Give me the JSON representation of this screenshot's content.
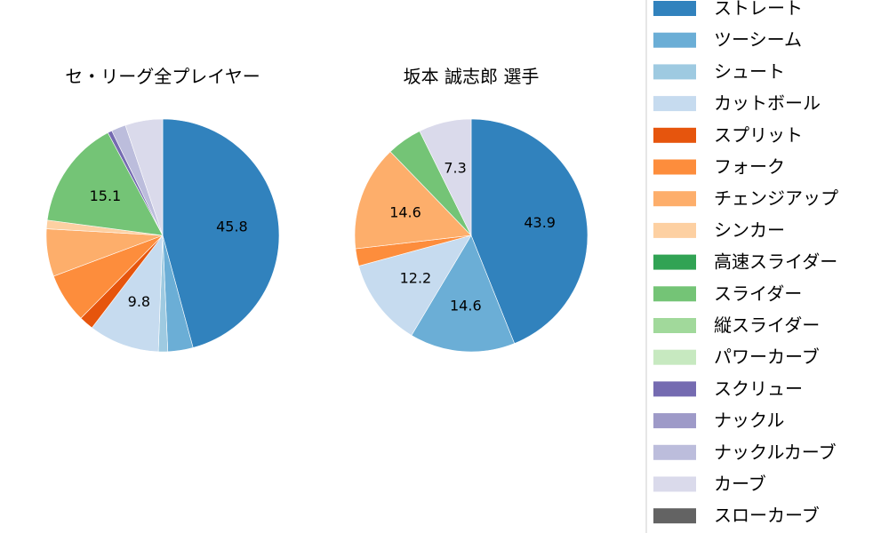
{
  "chart_data": [
    {
      "type": "pie",
      "title": "セ・リーグ全プレイヤー",
      "categories": [
        "ストレート",
        "ツーシーム",
        "シュート",
        "カットボール",
        "スプリット",
        "フォーク",
        "チェンジアップ",
        "シンカー",
        "スライダー",
        "スクリュー",
        "ナックルカーブ",
        "カーブ"
      ],
      "values": [
        45.8,
        3.5,
        1.3,
        9.8,
        2.0,
        6.9,
        6.6,
        1.2,
        15.1,
        0.6,
        2.0,
        5.2
      ],
      "colors": [
        "#3182bd",
        "#6baed6",
        "#9ecae1",
        "#c6dbef",
        "#e6550d",
        "#fd8d3c",
        "#fdae6b",
        "#fdd0a2",
        "#74c476",
        "#756bb1",
        "#bcbddc",
        "#dadaeb"
      ],
      "labels_shown": [
        "45.8",
        "9.8",
        "15.1"
      ],
      "direction": "clockwise from top"
    },
    {
      "type": "pie",
      "title": "坂本 誠志郎  選手",
      "categories": [
        "ストレート",
        "ツーシーム",
        "カットボール",
        "フォーク",
        "チェンジアップ",
        "スライダー",
        "カーブ"
      ],
      "values": [
        43.9,
        14.6,
        12.2,
        2.4,
        14.6,
        4.9,
        7.3
      ],
      "colors": [
        "#3182bd",
        "#6baed6",
        "#c6dbef",
        "#fd8d3c",
        "#fdae6b",
        "#74c476",
        "#dadaeb"
      ],
      "labels_shown": [
        "43.9",
        "14.6",
        "12.2",
        "14.6",
        "7.3"
      ],
      "direction": "clockwise from top"
    }
  ],
  "legend": {
    "placement": "right",
    "entries": [
      {
        "label": "ストレート",
        "color": "#3182bd"
      },
      {
        "label": "ツーシーム",
        "color": "#6baed6"
      },
      {
        "label": "シュート",
        "color": "#9ecae1"
      },
      {
        "label": "カットボール",
        "color": "#c6dbef"
      },
      {
        "label": "スプリット",
        "color": "#e6550d"
      },
      {
        "label": "フォーク",
        "color": "#fd8d3c"
      },
      {
        "label": "チェンジアップ",
        "color": "#fdae6b"
      },
      {
        "label": "シンカー",
        "color": "#fdd0a2"
      },
      {
        "label": "高速スライダー",
        "color": "#31a354"
      },
      {
        "label": "スライダー",
        "color": "#74c476"
      },
      {
        "label": "縦スライダー",
        "color": "#a1d99b"
      },
      {
        "label": "パワーカーブ",
        "color": "#c7e9c0"
      },
      {
        "label": "スクリュー",
        "color": "#756bb1"
      },
      {
        "label": "ナックル",
        "color": "#9e9ac8"
      },
      {
        "label": "ナックルカーブ",
        "color": "#bcbddc"
      },
      {
        "label": "カーブ",
        "color": "#dadaeb"
      },
      {
        "label": "スローカーブ",
        "color": "#636363"
      }
    ]
  }
}
